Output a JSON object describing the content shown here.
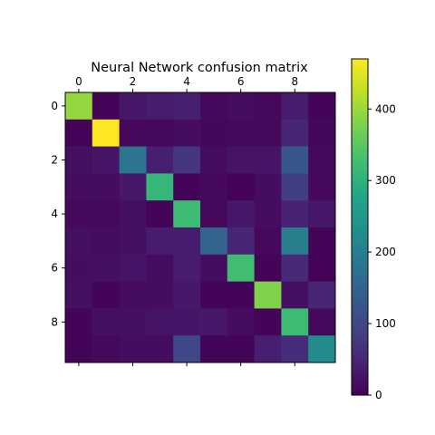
{
  "chart_data": {
    "type": "heatmap",
    "title": "Neural Network confusion matrix",
    "xlabel": "",
    "ylabel": "",
    "x_ticks": [
      0,
      2,
      4,
      6,
      8
    ],
    "y_ticks": [
      0,
      2,
      4,
      6,
      8
    ],
    "x_tick_position": "top",
    "colormap": "viridis",
    "color_range": [
      0,
      470
    ],
    "colorbar_ticks": [
      0,
      100,
      200,
      300,
      400
    ],
    "matrix": [
      [
        395,
        5,
        30,
        35,
        40,
        10,
        15,
        10,
        35,
        5
      ],
      [
        5,
        470,
        10,
        10,
        15,
        8,
        10,
        10,
        50,
        8
      ],
      [
        20,
        25,
        185,
        40,
        75,
        15,
        25,
        25,
        125,
        10
      ],
      [
        15,
        15,
        30,
        310,
        5,
        10,
        3,
        15,
        85,
        10
      ],
      [
        10,
        10,
        20,
        5,
        320,
        10,
        30,
        15,
        45,
        30
      ],
      [
        20,
        15,
        20,
        35,
        35,
        150,
        50,
        10,
        200,
        5
      ],
      [
        15,
        20,
        25,
        15,
        35,
        15,
        325,
        5,
        55,
        3
      ],
      [
        20,
        5,
        15,
        15,
        30,
        5,
        5,
        380,
        20,
        50
      ],
      [
        5,
        20,
        20,
        25,
        25,
        30,
        15,
        5,
        320,
        10
      ],
      [
        5,
        10,
        15,
        15,
        100,
        5,
        5,
        40,
        60,
        225
      ]
    ]
  }
}
